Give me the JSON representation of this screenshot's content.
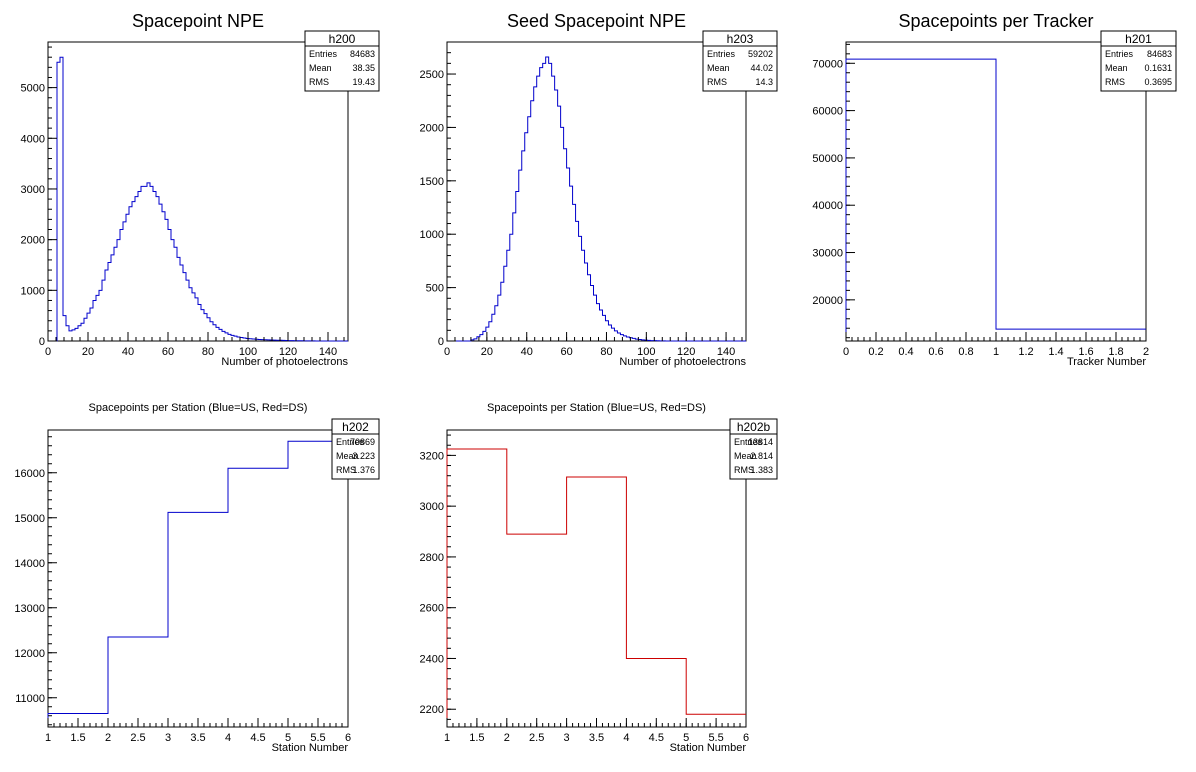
{
  "chart_data": [
    {
      "id": "h200",
      "type": "histogram",
      "title": "Spacepoint NPE",
      "xlabel": "Number of photoelectrons",
      "ylabel": "",
      "xlim": [
        0,
        150
      ],
      "ylim": [
        0,
        5900
      ],
      "bin_width": 1.5,
      "line_color": "#0000cc",
      "x_ticks": [
        "0",
        "20",
        "40",
        "60",
        "80",
        "100",
        "120",
        "140"
      ],
      "y_ticks": [
        "0",
        "1000",
        "2000",
        "3000",
        "4000",
        "5000"
      ],
      "values": [
        0,
        0,
        0,
        5500,
        5600,
        500,
        300,
        200,
        220,
        250,
        300,
        350,
        450,
        550,
        650,
        800,
        900,
        1000,
        1200,
        1400,
        1550,
        1700,
        1850,
        2000,
        2200,
        2350,
        2500,
        2650,
        2750,
        2850,
        2950,
        3050,
        3050,
        3120,
        3050,
        2950,
        2850,
        2700,
        2550,
        2400,
        2200,
        2000,
        1850,
        1650,
        1500,
        1350,
        1200,
        1050,
        950,
        850,
        720,
        620,
        540,
        460,
        380,
        320,
        270,
        230,
        190,
        160,
        130,
        110,
        95,
        80,
        70,
        60,
        50,
        45,
        40,
        35,
        30,
        28,
        25,
        22,
        20,
        18,
        16,
        14,
        12,
        10,
        8,
        7,
        6,
        5,
        4,
        3,
        3,
        2,
        2,
        1,
        1,
        1,
        1,
        0,
        0,
        0,
        0,
        0,
        0,
        0
      ],
      "stats": {
        "name": "h200",
        "rows": [
          [
            "Entries",
            "84683"
          ],
          [
            "Mean",
            "38.35"
          ],
          [
            "RMS",
            "19.43"
          ]
        ]
      }
    },
    {
      "id": "h203",
      "type": "histogram",
      "title": "Seed Spacepoint NPE",
      "xlabel": "Number of photoelectrons",
      "ylabel": "",
      "xlim": [
        0,
        150
      ],
      "ylim": [
        0,
        2800
      ],
      "bin_width": 1.5,
      "line_color": "#0000cc",
      "x_ticks": [
        "0",
        "20",
        "40",
        "60",
        "80",
        "100",
        "120",
        "140"
      ],
      "y_ticks": [
        "0",
        "500",
        "1000",
        "1500",
        "2000",
        "2500"
      ],
      "values": [
        0,
        0,
        0,
        0,
        0,
        0,
        0,
        0,
        10,
        20,
        40,
        60,
        90,
        130,
        180,
        250,
        330,
        430,
        550,
        700,
        850,
        1000,
        1200,
        1400,
        1600,
        1780,
        1950,
        2100,
        2250,
        2380,
        2480,
        2560,
        2600,
        2660,
        2600,
        2480,
        2350,
        2200,
        2000,
        1800,
        1620,
        1450,
        1280,
        1120,
        980,
        850,
        730,
        620,
        520,
        430,
        350,
        290,
        240,
        190,
        150,
        120,
        95,
        75,
        60,
        48,
        38,
        30,
        24,
        18,
        14,
        10,
        8,
        6,
        4,
        3,
        2,
        1,
        1,
        0,
        0,
        0,
        0,
        0,
        0,
        0,
        0,
        0,
        0,
        0,
        0,
        0,
        0,
        0,
        0,
        0,
        0,
        0,
        0,
        0,
        0,
        0,
        0,
        0,
        0,
        0
      ],
      "stats": {
        "name": "h203",
        "rows": [
          [
            "Entries",
            "59202"
          ],
          [
            "Mean",
            "44.02"
          ],
          [
            "RMS",
            "14.3"
          ]
        ]
      }
    },
    {
      "id": "h201",
      "type": "histogram",
      "title": "Spacepoints per Tracker",
      "xlabel": "Tracker Number",
      "ylabel": "",
      "xlim": [
        0,
        2
      ],
      "ylim": [
        11300,
        74500
      ],
      "bin_width": 1,
      "line_color": "#0000cc",
      "x_ticks": [
        "0",
        "0.2",
        "0.4",
        "0.6",
        "0.8",
        "1",
        "1.2",
        "1.4",
        "1.6",
        "1.8",
        "2"
      ],
      "y_ticks": [
        "20000",
        "30000",
        "40000",
        "50000",
        "60000",
        "70000"
      ],
      "y_tick_values": [
        20000,
        30000,
        40000,
        50000,
        60000,
        70000
      ],
      "values": [
        70869,
        13814
      ],
      "stats": {
        "name": "h201",
        "rows": [
          [
            "Entries",
            "84683"
          ],
          [
            "Mean",
            "0.1631"
          ],
          [
            "RMS",
            "0.3695"
          ]
        ]
      }
    },
    {
      "id": "h202",
      "type": "histogram",
      "title": "Spacepoints per Station (Blue=US, Red=DS)",
      "xlabel": "Station Number",
      "ylabel": "",
      "xlim": [
        1,
        6
      ],
      "ylim": [
        10350,
        16950
      ],
      "bin_width": 1,
      "line_color": "#0000cc",
      "x_ticks": [
        "1",
        "1.5",
        "2",
        "2.5",
        "3",
        "3.5",
        "4",
        "4.5",
        "5",
        "5.5",
        "6"
      ],
      "y_ticks": [
        "11000",
        "12000",
        "13000",
        "14000",
        "15000",
        "16000"
      ],
      "y_tick_values": [
        11000,
        12000,
        13000,
        14000,
        15000,
        16000
      ],
      "values": [
        10650,
        12350,
        15120,
        16100,
        16700
      ],
      "stats": {
        "name": "h202",
        "rows": [
          [
            "Entries",
            "70869"
          ],
          [
            "Mean",
            "3.223"
          ],
          [
            "RMS",
            "1.376"
          ]
        ]
      }
    },
    {
      "id": "h202b",
      "type": "histogram",
      "title": "Spacepoints per Station (Blue=US, Red=DS)",
      "xlabel": "Station Number",
      "ylabel": "",
      "xlim": [
        1,
        6
      ],
      "ylim": [
        2130,
        3300
      ],
      "bin_width": 1,
      "line_color": "#cc0000",
      "x_ticks": [
        "1",
        "1.5",
        "2",
        "2.5",
        "3",
        "3.5",
        "4",
        "4.5",
        "5",
        "5.5",
        "6"
      ],
      "y_ticks": [
        "2200",
        "2400",
        "2600",
        "2800",
        "3000",
        "3200"
      ],
      "y_tick_values": [
        2200,
        2400,
        2600,
        2800,
        3000,
        3200
      ],
      "values": [
        3225,
        2890,
        3115,
        2400,
        2180
      ],
      "stats": {
        "name": "h202b",
        "rows": [
          [
            "Entries",
            "13814"
          ],
          [
            "Mean",
            "2.814"
          ],
          [
            "RMS",
            "1.383"
          ]
        ]
      }
    }
  ]
}
